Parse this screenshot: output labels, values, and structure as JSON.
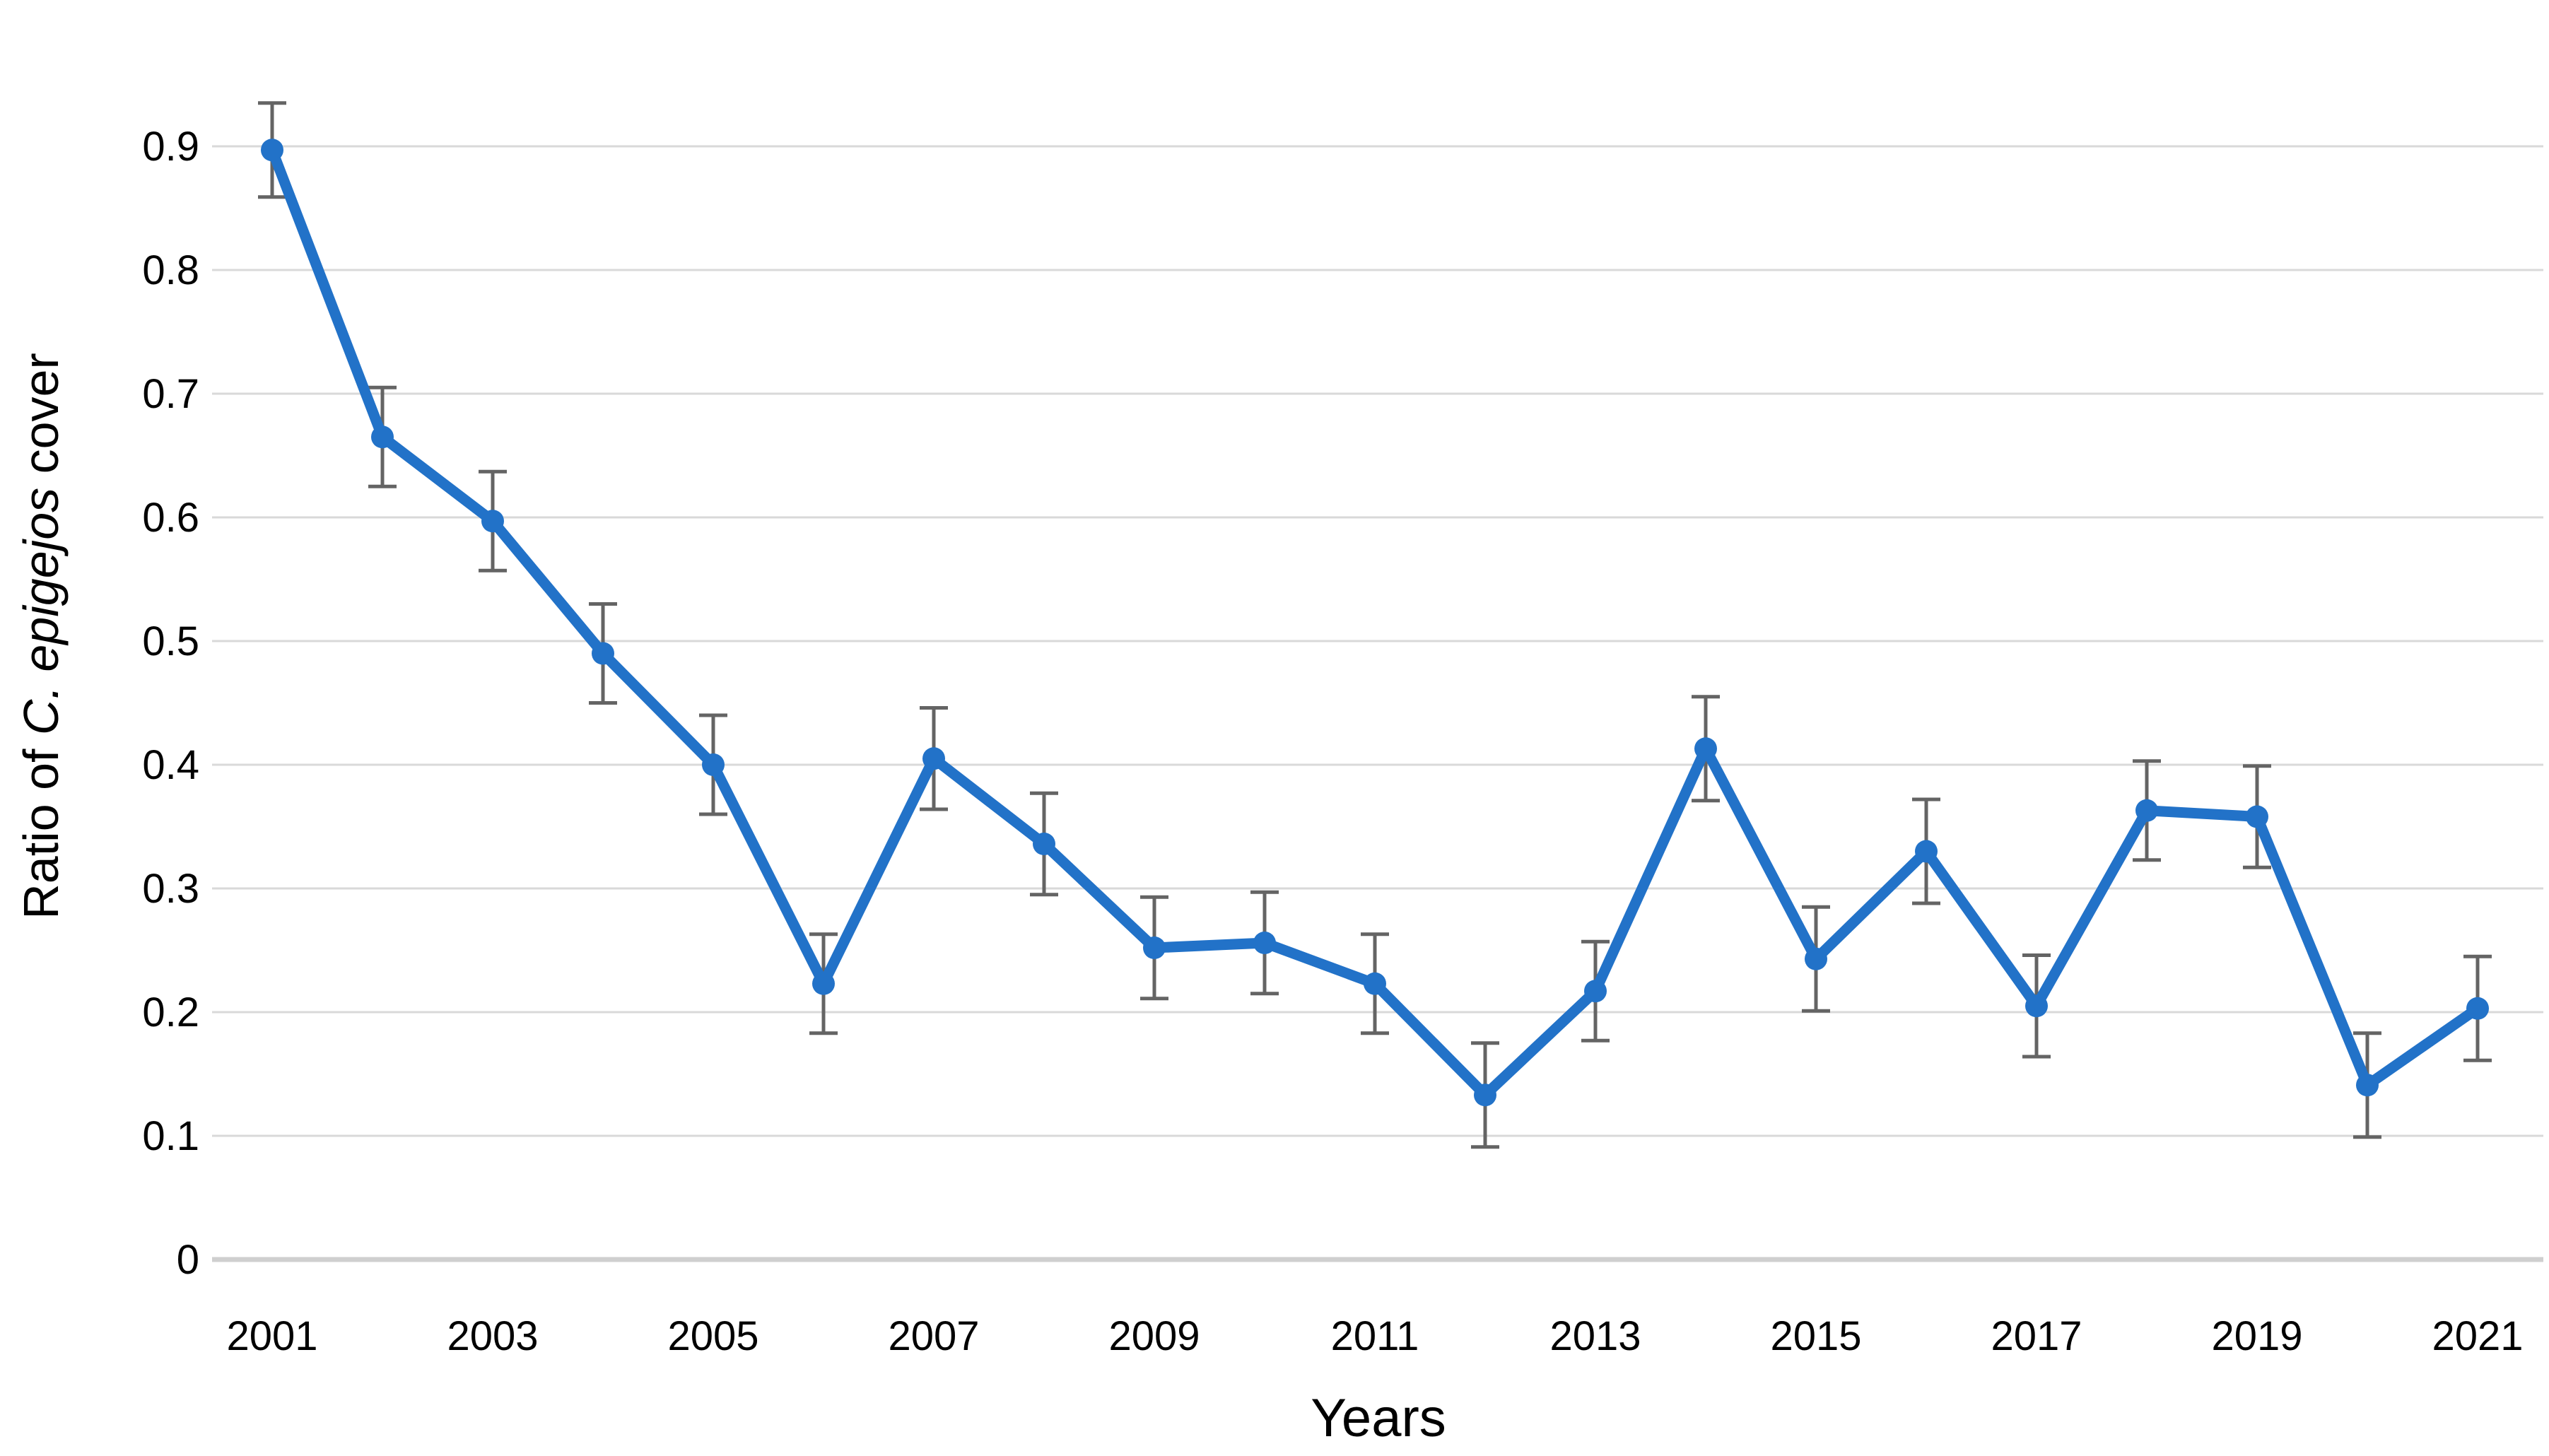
{
  "page": {
    "background": "#ffffff"
  },
  "chart_data": {
    "type": "line",
    "title": "",
    "xlabel": "Years",
    "ylabel": "Ratio of C. epigejos cover",
    "ylabel_parts": [
      {
        "text": "Ratio of ",
        "italic": false
      },
      {
        "text": "C. epigejos",
        "italic": true
      },
      {
        "text": " cover",
        "italic": false
      }
    ],
    "x": [
      2001,
      2002,
      2003,
      2004,
      2005,
      2006,
      2007,
      2008,
      2009,
      2010,
      2011,
      2012,
      2013,
      2014,
      2015,
      2016,
      2017,
      2018,
      2019,
      2020,
      2021
    ],
    "series": [
      {
        "name": "Ratio of C. epigejos cover",
        "values": [
          0.897,
          0.665,
          0.597,
          0.49,
          0.4,
          0.223,
          0.405,
          0.336,
          0.252,
          0.256,
          0.223,
          0.133,
          0.217,
          0.413,
          0.243,
          0.33,
          0.205,
          0.363,
          0.358,
          0.141,
          0.203
        ],
        "errors": [
          0.038,
          0.04,
          0.04,
          0.04,
          0.04,
          0.04,
          0.041,
          0.041,
          0.041,
          0.041,
          0.04,
          0.042,
          0.04,
          0.042,
          0.042,
          0.042,
          0.041,
          0.04,
          0.041,
          0.042,
          0.042
        ]
      }
    ],
    "ylim": [
      0,
      0.95
    ],
    "yticks": [
      {
        "value": 0.0,
        "label": "0"
      },
      {
        "value": 0.1,
        "label": "0.1"
      },
      {
        "value": 0.2,
        "label": "0.2"
      },
      {
        "value": 0.3,
        "label": "0.3"
      },
      {
        "value": 0.4,
        "label": "0.4"
      },
      {
        "value": 0.5,
        "label": "0.5"
      },
      {
        "value": 0.6,
        "label": "0.6"
      },
      {
        "value": 0.7,
        "label": "0.7"
      },
      {
        "value": 0.8,
        "label": "0.8"
      },
      {
        "value": 0.9,
        "label": "0.9"
      }
    ],
    "xticks": [
      2001,
      2003,
      2005,
      2007,
      2009,
      2011,
      2013,
      2015,
      2017,
      2019,
      2021
    ],
    "grid": true,
    "legend": false,
    "marker": "circle",
    "error_bars": true,
    "colors": {
      "line": "#2272C8",
      "marker": "#2272C8",
      "error_bar": "#646464",
      "gridline": "#D9D9D9",
      "axis_line": "#CFCFCF",
      "text": "#000000"
    }
  }
}
